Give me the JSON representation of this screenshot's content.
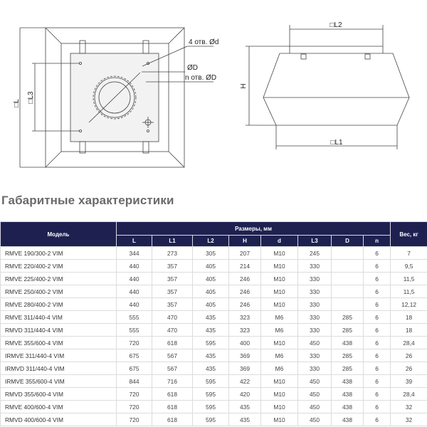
{
  "drawing": {
    "label_L": "□L",
    "label_L3": "□L3",
    "label_4holes": "4 отв. Ød",
    "label_D": "ØD",
    "label_nholes": "n отв. ØD",
    "label_L2": "□L2",
    "label_H": "H",
    "label_L1": "□L1"
  },
  "title": "Габаритные характеристики",
  "table": {
    "header_model": "Модель",
    "header_dimensions": "Размеры, мм",
    "header_weight": "Вес, кг",
    "columns": [
      "L",
      "L1",
      "L2",
      "H",
      "d",
      "L3",
      "D",
      "n"
    ],
    "rows": [
      [
        "RMVE 190/300-2 VIM",
        "344",
        "273",
        "305",
        "207",
        "M10",
        "245",
        "",
        "6",
        "7"
      ],
      [
        "RMVE 220/400-2 VIM",
        "440",
        "357",
        "405",
        "214",
        "M10",
        "330",
        "",
        "6",
        "9,5"
      ],
      [
        "RMVE 225/400-2 VIM",
        "440",
        "357",
        "405",
        "246",
        "M10",
        "330",
        "",
        "6",
        "11,5"
      ],
      [
        "RMVE 250/400-2 VIM",
        "440",
        "357",
        "405",
        "246",
        "M10",
        "330",
        "",
        "6",
        "11,5"
      ],
      [
        "RMVE 280/400-2 VIM",
        "440",
        "357",
        "405",
        "246",
        "M10",
        "330",
        "",
        "6",
        "12,12"
      ],
      [
        "RMVE 311/440-4 VIM",
        "555",
        "470",
        "435",
        "323",
        "M6",
        "330",
        "285",
        "6",
        "18"
      ],
      [
        "RMVD 311/440-4 VIM",
        "555",
        "470",
        "435",
        "323",
        "M6",
        "330",
        "285",
        "6",
        "18"
      ],
      [
        "RMVE 355/600-4 VIM",
        "720",
        "618",
        "595",
        "400",
        "M10",
        "450",
        "438",
        "6",
        "28,4"
      ],
      [
        "IRMVE 311/440-4 VIM",
        "675",
        "567",
        "435",
        "369",
        "M6",
        "330",
        "285",
        "6",
        "26"
      ],
      [
        "IRMVD 311/440-4 VIM",
        "675",
        "567",
        "435",
        "369",
        "M6",
        "330",
        "285",
        "6",
        "26"
      ],
      [
        "IRMVE 355/600-4 VIM",
        "844",
        "716",
        "595",
        "422",
        "M10",
        "450",
        "438",
        "6",
        "39"
      ],
      [
        "RMVD 355/600-4 VIM",
        "720",
        "618",
        "595",
        "420",
        "M10",
        "450",
        "438",
        "6",
        "28,4"
      ],
      [
        "RMVE 400/600-4 VIM",
        "720",
        "618",
        "595",
        "435",
        "M10",
        "450",
        "438",
        "6",
        "32"
      ],
      [
        "RMVD 400/600-4 VIM",
        "720",
        "618",
        "595",
        "435",
        "M10",
        "450",
        "438",
        "6",
        "32"
      ]
    ]
  }
}
